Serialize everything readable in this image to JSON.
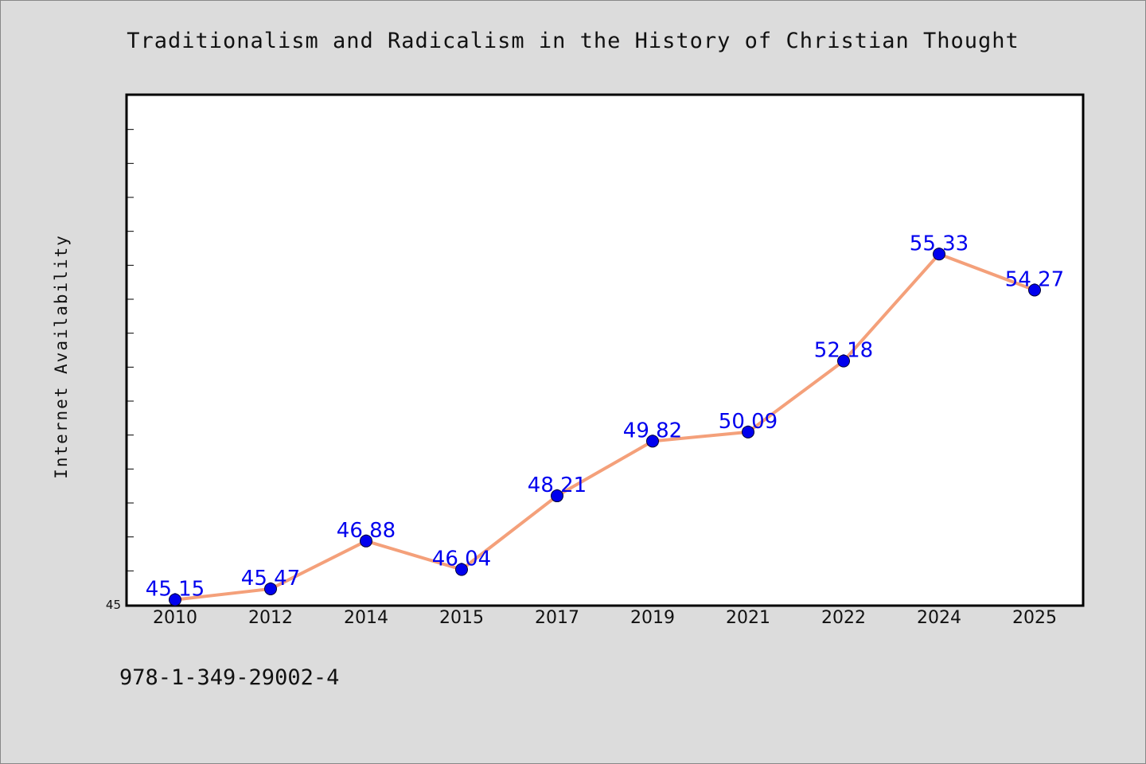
{
  "chart_data": {
    "type": "line",
    "title": "Traditionalism and Radicalism in the History of Christian Thought",
    "xlabel": "",
    "ylabel": "Internet Availability",
    "categories": [
      "2010",
      "2012",
      "2014",
      "2015",
      "2017",
      "2019",
      "2021",
      "2022",
      "2024",
      "2025"
    ],
    "series": [
      {
        "values": [
          45.15,
          45.47,
          46.88,
          46.04,
          48.21,
          49.82,
          50.09,
          52.18,
          55.33,
          54.27
        ],
        "value_labels": [
          "45.15",
          "45.47",
          "46.88",
          "46.04",
          "48.21",
          "49.82",
          "50.09",
          "52.18",
          "55.33",
          "54.27"
        ],
        "line_color": "#f4a07a",
        "marker_color": "#0000ee",
        "label_color": "#0000ee"
      }
    ],
    "ylim": [
      45,
      60
    ],
    "y_tick_step": 1,
    "y_tick_labels": [
      "45"
    ],
    "grid": false,
    "legend": "none"
  },
  "footer": {
    "code": "978-1-349-29002-4"
  }
}
